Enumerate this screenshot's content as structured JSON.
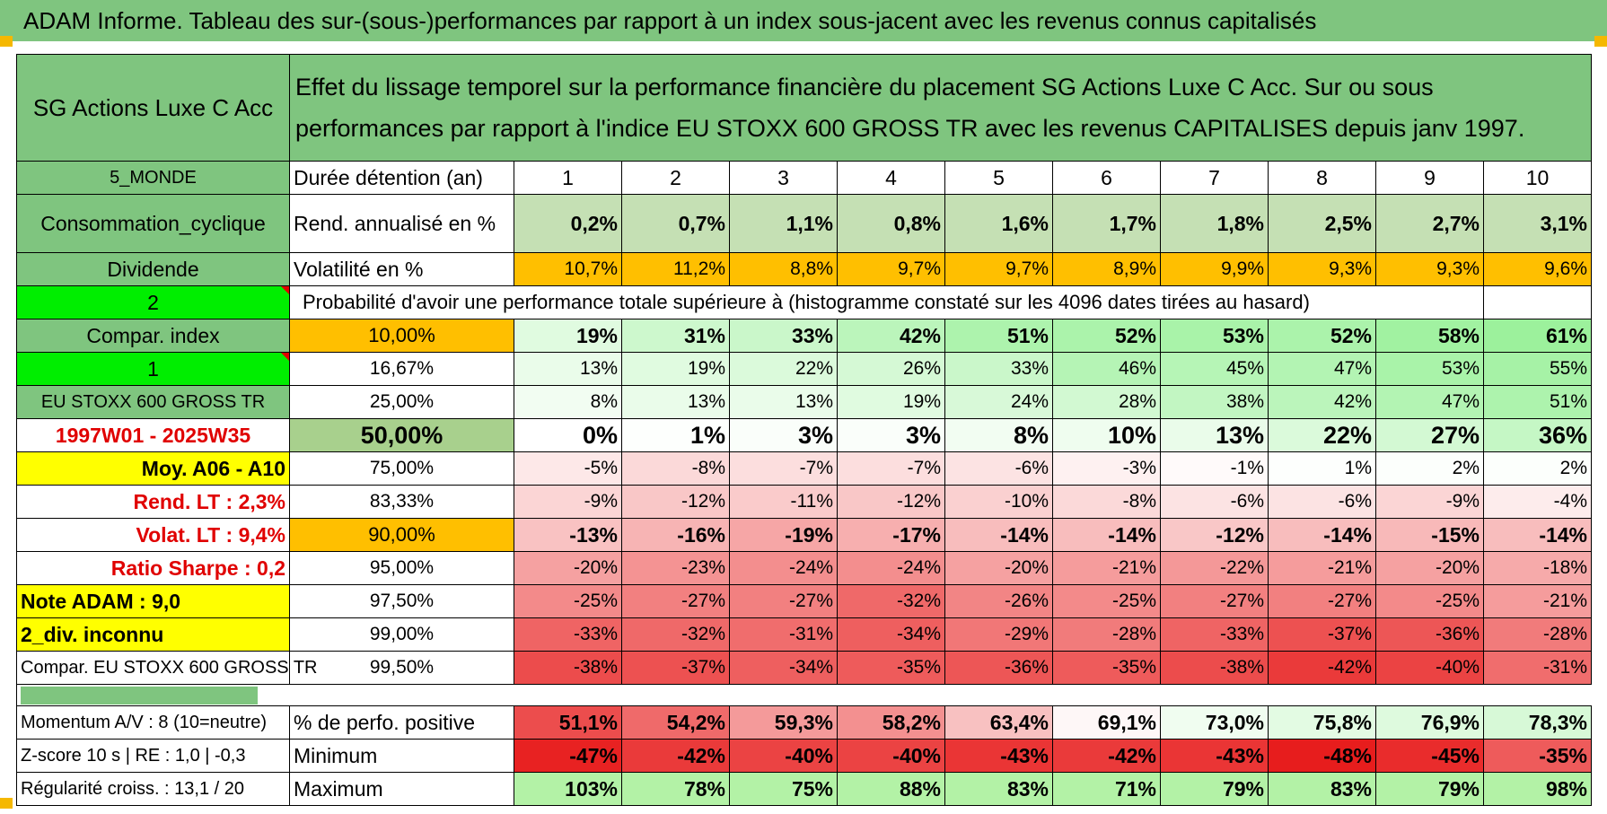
{
  "header": {
    "title": "ADAM Informe. Tableau des sur-(sous-)performances par rapport à un index sous-jacent avec les revenus connus capitalisés"
  },
  "fund": {
    "name": "SG Actions Luxe C Acc",
    "description": "Effet du lissage temporel sur la performance financière du placement SG Actions Luxe C Acc. Sur ou sous performances par rapport à l'indice EU STOXX 600 GROSS TR avec les revenus CAPITALISES depuis janv 1997."
  },
  "side": {
    "zone": "5_MONDE",
    "sector": "Consommation_cyclique",
    "dividend": "Dividende",
    "value_2": "2",
    "compar_index": "Compar. index",
    "value_1": "1",
    "index_name": "EU STOXX 600 GROSS TR",
    "period": "1997W01 - 2025W35",
    "moy": "Moy. A06 - A10",
    "rend_lt": "Rend. LT :   2,3%",
    "volat_lt": "Volat. LT :   9,4%",
    "sharpe": "Ratio Sharpe :   0,2",
    "note": "Note ADAM : 9,0",
    "div": "2_div. inconnu",
    "compar_full": "Compar. EU STOXX 600 GROSS TR",
    "momentum": "Momentum A/V : 8 (10=neutre)",
    "zscore": "Z-score 10 s | RE : 1,0 | -0,3",
    "regularite": "Régularité croiss. : 13,1 / 20"
  },
  "labels": {
    "duree": "Durée détention (an)",
    "rend": "Rend. annualisé en %",
    "volat": "Volatilité en %",
    "proba": "Probabilité d'avoir une performance totale supérieure à (histogramme constaté sur les 4096 dates tirées au hasard)",
    "pct_pos": "% de perfo. positive",
    "min": "Minimum",
    "max": "Maximum"
  },
  "years": [
    "1",
    "2",
    "3",
    "4",
    "5",
    "6",
    "7",
    "8",
    "9",
    "10"
  ],
  "rend": [
    "0,2%",
    "0,7%",
    "1,1%",
    "0,8%",
    "1,6%",
    "1,7%",
    "1,8%",
    "2,5%",
    "2,7%",
    "3,1%"
  ],
  "volat": [
    "10,7%",
    "11,2%",
    "8,8%",
    "9,7%",
    "9,7%",
    "8,9%",
    "9,9%",
    "9,3%",
    "9,3%",
    "9,6%"
  ],
  "quantiles": [
    {
      "q": "10,00%",
      "vals": [
        "19%",
        "31%",
        "33%",
        "42%",
        "51%",
        "52%",
        "53%",
        "52%",
        "58%",
        "61%"
      ]
    },
    {
      "q": "16,67%",
      "vals": [
        "13%",
        "19%",
        "22%",
        "26%",
        "33%",
        "46%",
        "45%",
        "47%",
        "53%",
        "55%"
      ]
    },
    {
      "q": "25,00%",
      "vals": [
        "8%",
        "13%",
        "13%",
        "19%",
        "24%",
        "28%",
        "38%",
        "42%",
        "47%",
        "51%"
      ]
    },
    {
      "q": "50,00%",
      "vals": [
        "0%",
        "1%",
        "3%",
        "3%",
        "8%",
        "10%",
        "13%",
        "22%",
        "27%",
        "36%"
      ]
    },
    {
      "q": "75,00%",
      "vals": [
        "-5%",
        "-8%",
        "-7%",
        "-7%",
        "-6%",
        "-3%",
        "-1%",
        "1%",
        "2%",
        "2%"
      ]
    },
    {
      "q": "83,33%",
      "vals": [
        "-9%",
        "-12%",
        "-11%",
        "-12%",
        "-10%",
        "-8%",
        "-6%",
        "-6%",
        "-9%",
        "-4%"
      ]
    },
    {
      "q": "90,00%",
      "vals": [
        "-13%",
        "-16%",
        "-19%",
        "-17%",
        "-14%",
        "-14%",
        "-12%",
        "-14%",
        "-15%",
        "-14%"
      ]
    },
    {
      "q": "95,00%",
      "vals": [
        "-20%",
        "-23%",
        "-24%",
        "-24%",
        "-20%",
        "-21%",
        "-22%",
        "-21%",
        "-20%",
        "-18%"
      ]
    },
    {
      "q": "97,50%",
      "vals": [
        "-25%",
        "-27%",
        "-27%",
        "-32%",
        "-26%",
        "-25%",
        "-27%",
        "-27%",
        "-25%",
        "-21%"
      ]
    },
    {
      "q": "99,00%",
      "vals": [
        "-33%",
        "-32%",
        "-31%",
        "-34%",
        "-29%",
        "-28%",
        "-33%",
        "-37%",
        "-36%",
        "-28%"
      ]
    },
    {
      "q": "99,50%",
      "vals": [
        "-38%",
        "-37%",
        "-34%",
        "-35%",
        "-36%",
        "-35%",
        "-38%",
        "-42%",
        "-40%",
        "-31%"
      ]
    }
  ],
  "pct_pos": [
    "51,1%",
    "54,2%",
    "59,3%",
    "58,2%",
    "63,4%",
    "69,1%",
    "73,0%",
    "75,8%",
    "76,9%",
    "78,3%"
  ],
  "minimum": [
    "-47%",
    "-42%",
    "-40%",
    "-40%",
    "-43%",
    "-42%",
    "-43%",
    "-48%",
    "-45%",
    "-35%"
  ],
  "maximum": [
    "103%",
    "78%",
    "75%",
    "88%",
    "83%",
    "71%",
    "79%",
    "83%",
    "79%",
    "98%"
  ],
  "colors": {
    "header_green": "#7fc57f",
    "bright_green": "#00ee00",
    "yellow": "#ffff00",
    "orange": "#ffbf00",
    "red_text": "#e00000"
  }
}
